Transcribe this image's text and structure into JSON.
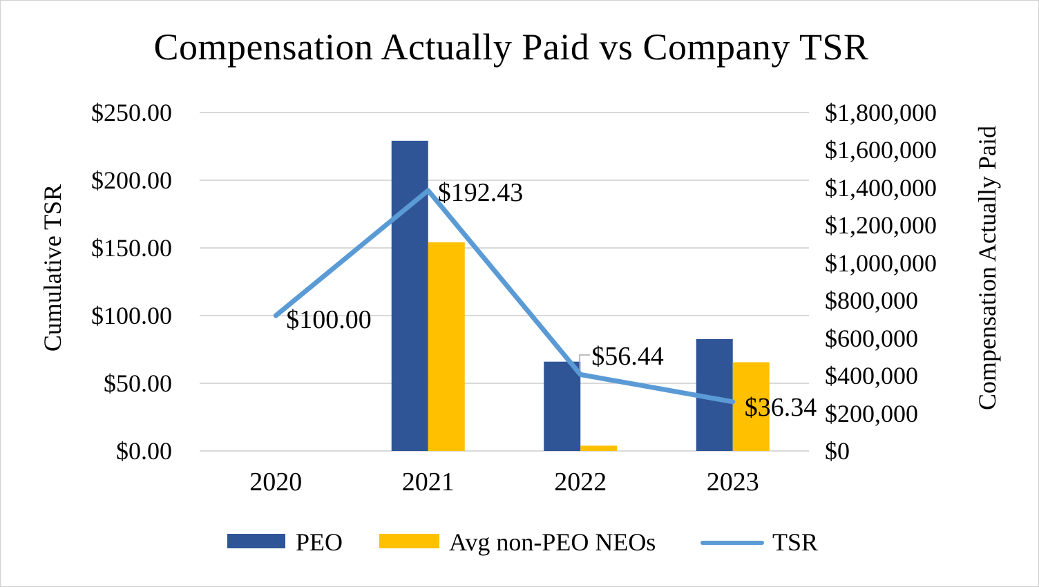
{
  "title": "Compensation Actually Paid vs Company TSR",
  "axes": {
    "left": {
      "title": "Cumulative TSR",
      "ticks": [
        "$250.00",
        "$200.00",
        "$150.00",
        "$100.00",
        "$50.00",
        "$0.00"
      ]
    },
    "right": {
      "title": "Compensation Actually Paid",
      "ticks": [
        "$1,800,000",
        "$1,600,000",
        "$1,400,000",
        "$1,200,000",
        "$1,000,000",
        "$800,000",
        "$600,000",
        "$400,000",
        "$200,000",
        "$0"
      ]
    },
    "x": {
      "categories": [
        "2020",
        "2021",
        "2022",
        "2023"
      ]
    }
  },
  "legend": {
    "items": [
      {
        "label": "PEO",
        "marker": "bar",
        "color": "#2F5597"
      },
      {
        "label": "Avg non-PEO NEOs",
        "marker": "bar",
        "color": "#FFC000"
      },
      {
        "label": "TSR",
        "marker": "line",
        "color": "#5B9BD5"
      }
    ]
  },
  "colors": {
    "peo_bar": "#2F5597",
    "neo_bar": "#FFC000",
    "tsr_line": "#5B9BD5",
    "gridline": "#D9D9D9",
    "callout": "#A6A6A6",
    "text": "#000000",
    "background": "#FFFFFF"
  },
  "chart_data": {
    "type": "combo (bar + line)",
    "title": "Compensation Actually Paid vs Company TSR",
    "categories": [
      "2020",
      "2021",
      "2022",
      "2023"
    ],
    "series": [
      {
        "name": "PEO",
        "type": "bar",
        "axis": "right",
        "color": "#2F5597",
        "values": [
          0,
          1650000,
          475000,
          595000
        ]
      },
      {
        "name": "Avg non-PEO NEOs",
        "type": "bar",
        "axis": "right",
        "color": "#FFC000",
        "values": [
          0,
          1110000,
          28000,
          472000
        ]
      },
      {
        "name": "TSR",
        "type": "line",
        "axis": "left",
        "color": "#5B9BD5",
        "values": [
          100.0,
          192.43,
          56.44,
          36.34
        ],
        "point_labels": [
          "$100.00",
          "$192.43",
          "$56.44",
          "$36.34"
        ]
      }
    ],
    "left_ylabel": "Cumulative TSR",
    "left_ylim": [
      0,
      250
    ],
    "left_tick_step": 50,
    "right_ylabel": "Compensation Actually Paid",
    "right_ylim": [
      0,
      1800000
    ],
    "right_tick_step": 200000,
    "grid": true,
    "legend_position": "bottom"
  }
}
